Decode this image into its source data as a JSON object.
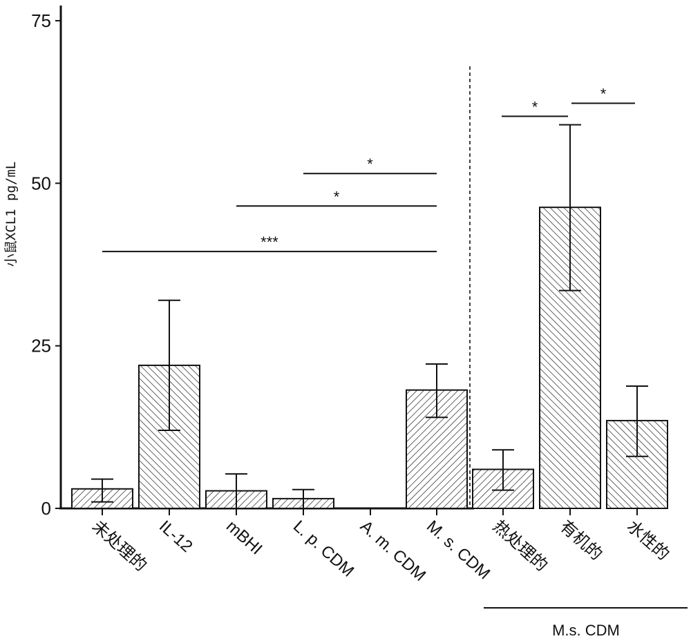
{
  "chart_data": {
    "type": "bar",
    "ylabel": "小鼠XCL1 pg/mL",
    "ylim": [
      0,
      75
    ],
    "yticks": [
      0,
      25,
      50,
      75
    ],
    "categories": [
      "未处理的",
      "IL-12",
      "mBHI",
      "L. p. CDM",
      "A. m. CDM",
      "M. s. CDM",
      "热处理的",
      "有机的",
      "水性的"
    ],
    "values": [
      3.0,
      22.0,
      2.7,
      1.5,
      0,
      18.2,
      6.0,
      46.3,
      13.5
    ],
    "error_low": [
      1.0,
      12.0,
      0.0,
      0.0,
      0,
      14.0,
      2.8,
      33.5,
      8.0
    ],
    "error_high": [
      4.5,
      32.0,
      5.3,
      2.9,
      0,
      22.2,
      9.0,
      59.0,
      18.8
    ],
    "hatch": [
      "fwd",
      "back",
      "fwd",
      "fwd",
      "fwd",
      "fwd",
      "fwd",
      "back",
      "back"
    ],
    "significance": [
      {
        "from": 5,
        "to": 0,
        "y": 39.5,
        "label": "***"
      },
      {
        "from": 5,
        "to": 2,
        "y": 46.5,
        "label": "*"
      },
      {
        "from": 5,
        "to": 3,
        "y": 51.5,
        "label": "*"
      },
      {
        "from": 6,
        "to": 7,
        "y": 60.3,
        "label": "*"
      },
      {
        "from": 7,
        "to": 8,
        "y": 62.3,
        "label": "*"
      }
    ],
    "divider_after": 5,
    "group_label": "M.s. CDM",
    "group_categories": [
      6,
      7,
      8
    ]
  }
}
